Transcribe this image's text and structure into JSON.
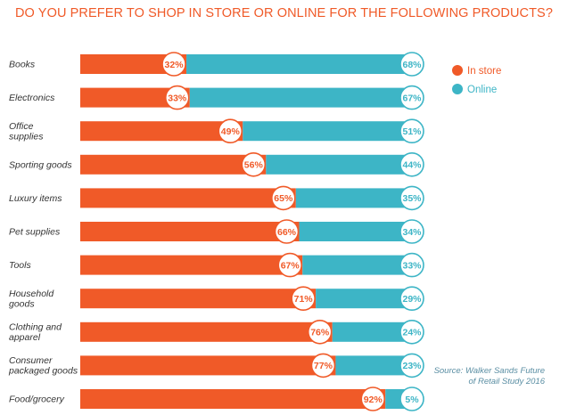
{
  "chart_data": {
    "type": "bar",
    "stacked": true,
    "orientation": "horizontal",
    "title": "DO YOU PREFER TO SHOP IN STORE OR ONLINE FOR THE FOLLOWING PRODUCTS?",
    "categories": [
      [
        "Books"
      ],
      [
        "Electronics"
      ],
      [
        "Office",
        "supplies"
      ],
      [
        "Sporting goods"
      ],
      [
        "Luxury items"
      ],
      [
        "Pet supplies"
      ],
      [
        "Tools"
      ],
      [
        "Household",
        "goods"
      ],
      [
        "Clothing and",
        "apparel"
      ],
      [
        "Consumer",
        "packaged goods"
      ],
      [
        "Food/grocery"
      ]
    ],
    "series": [
      {
        "name": "In store",
        "color": "#f05a28",
        "values": [
          32,
          33,
          49,
          56,
          65,
          66,
          67,
          71,
          76,
          77,
          92
        ]
      },
      {
        "name": "Online",
        "color": "#3db5c6",
        "values": [
          68,
          67,
          51,
          44,
          35,
          34,
          33,
          29,
          24,
          23,
          5
        ]
      }
    ],
    "value_suffix": "%",
    "xlim": [
      0,
      100
    ],
    "grid": false,
    "legend": "top-right"
  },
  "source": {
    "line1": "Source: Walker Sands Future",
    "line2": "of Retail Study 2016"
  }
}
